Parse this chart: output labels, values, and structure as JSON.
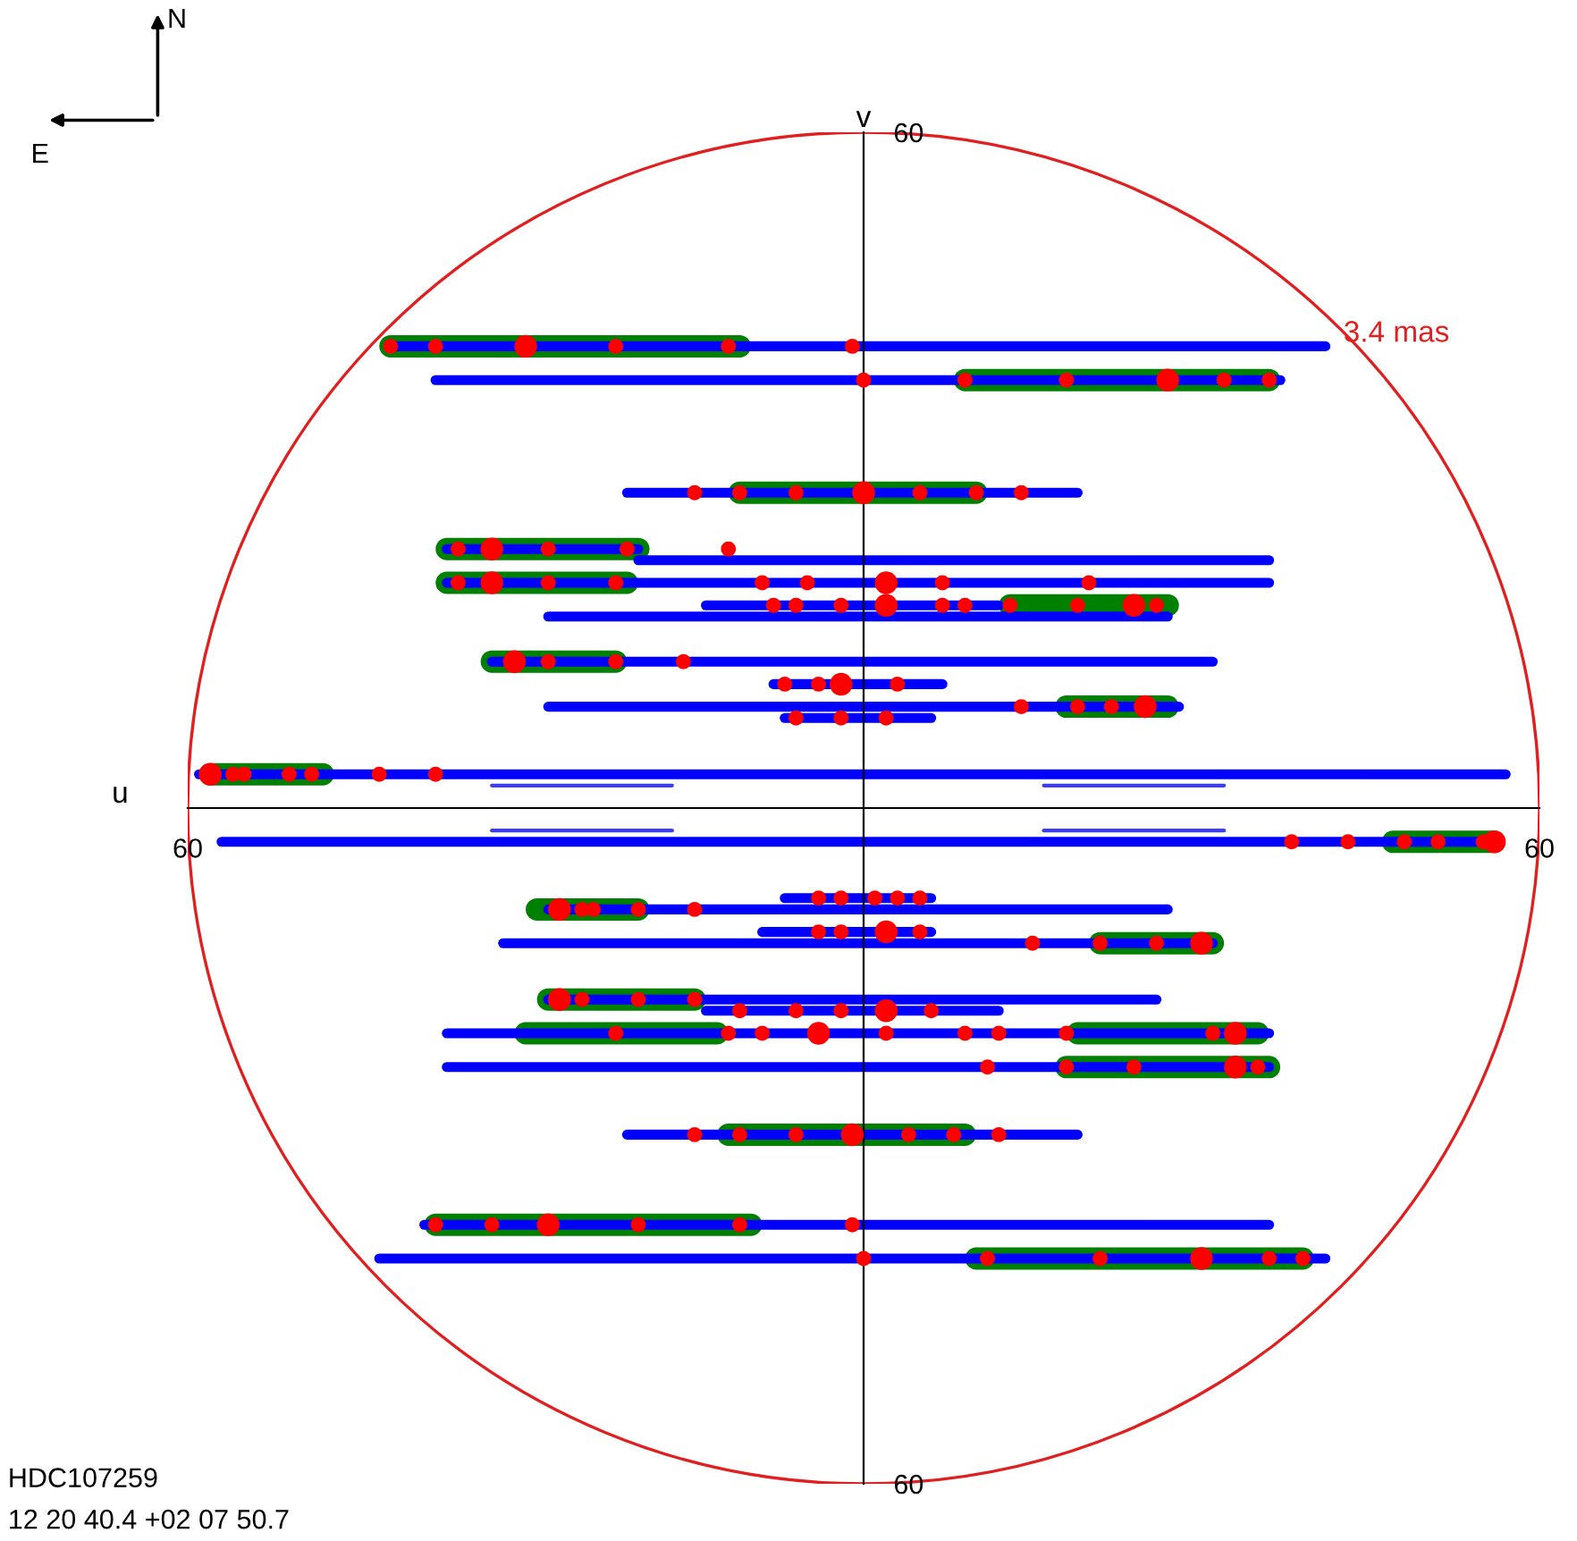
{
  "chart_data": {
    "type": "line",
    "xlabel": "u",
    "ylabel": "v",
    "xlim": [
      60,
      -60
    ],
    "ylim": [
      -60,
      60
    ],
    "xticks": [
      {
        "value": 60,
        "label": "60"
      },
      {
        "value": -60,
        "label": "60"
      }
    ],
    "yticks": [
      60,
      {
        "value": -60,
        "label": "60"
      }
    ],
    "grid": false,
    "legend": false,
    "marker": "none",
    "line_style": "solid",
    "annotations": [
      "3.4 mas",
      "HDC107259",
      "12 20 40.4 +02 07 50.7",
      "N",
      "E"
    ],
    "series": [
      {
        "color": "#008000",
        "x": [
          42,
          11
        ],
        "values": [
          41,
          41
        ]
      },
      {
        "color": "#008000",
        "x": [
          -9,
          -36
        ],
        "values": [
          38,
          38
        ]
      },
      {
        "color": "#008000",
        "x": [
          11,
          -10
        ],
        "values": [
          28,
          28
        ]
      },
      {
        "color": "#008000",
        "x": [
          37,
          20
        ],
        "values": [
          23,
          23
        ]
      },
      {
        "color": "#008000",
        "x": [
          37,
          21
        ],
        "values": [
          20,
          20
        ]
      },
      {
        "color": "#008000",
        "x": [
          -13,
          -27
        ],
        "values": [
          18,
          18
        ]
      },
      {
        "color": "#008000",
        "x": [
          33,
          22
        ],
        "values": [
          13,
          13
        ]
      },
      {
        "color": "#008000",
        "x": [
          -18,
          -27
        ],
        "values": [
          9,
          9
        ]
      },
      {
        "color": "#008000",
        "x": [
          58,
          48
        ],
        "values": [
          3,
          3
        ]
      },
      {
        "color": "#008000",
        "x": [
          -47,
          -56
        ],
        "values": [
          -3,
          -3
        ]
      },
      {
        "color": "#008000",
        "x": [
          29,
          20
        ],
        "values": [
          -9,
          -9
        ]
      },
      {
        "color": "#008000",
        "x": [
          -21,
          -31
        ],
        "values": [
          -12,
          -12
        ]
      },
      {
        "color": "#008000",
        "x": [
          28,
          15
        ],
        "values": [
          -17,
          -17
        ]
      },
      {
        "color": "#008000",
        "x": [
          30,
          13
        ],
        "values": [
          -20,
          -20
        ]
      },
      {
        "color": "#008000",
        "x": [
          -19,
          -35
        ],
        "values": [
          -20,
          -20
        ]
      },
      {
        "color": "#008000",
        "x": [
          -18,
          -36
        ],
        "values": [
          -23,
          -23
        ]
      },
      {
        "color": "#008000",
        "x": [
          12,
          -9
        ],
        "values": [
          -29,
          -29
        ]
      },
      {
        "color": "#008000",
        "x": [
          38,
          10
        ],
        "values": [
          -37,
          -37
        ]
      },
      {
        "color": "#008000",
        "x": [
          -10,
          -39
        ],
        "values": [
          -40,
          -40
        ]
      },
      {
        "color": "#0000ff",
        "x": [
          42,
          -41
        ],
        "values": [
          41,
          41
        ]
      },
      {
        "color": "#0000ff",
        "x": [
          38,
          -37
        ],
        "values": [
          38,
          38
        ]
      },
      {
        "color": "#0000ff",
        "x": [
          21,
          -19
        ],
        "values": [
          28,
          28
        ]
      },
      {
        "color": "#0000ff",
        "x": [
          37,
          20
        ],
        "values": [
          23,
          23
        ]
      },
      {
        "color": "#0000ff",
        "x": [
          20,
          -36
        ],
        "values": [
          22,
          22
        ]
      },
      {
        "color": "#0000ff",
        "x": [
          37,
          -36
        ],
        "values": [
          20,
          20
        ]
      },
      {
        "color": "#0000ff",
        "x": [
          14,
          -12
        ],
        "values": [
          18,
          18
        ]
      },
      {
        "color": "#0000ff",
        "x": [
          28,
          -27
        ],
        "values": [
          17,
          17
        ]
      },
      {
        "color": "#0000ff",
        "x": [
          33,
          -31
        ],
        "values": [
          13,
          13
        ]
      },
      {
        "color": "#0000ff",
        "x": [
          8,
          -7
        ],
        "values": [
          11,
          11
        ]
      },
      {
        "color": "#0000ff",
        "x": [
          28,
          -28
        ],
        "values": [
          9,
          9
        ]
      },
      {
        "color": "#0000ff",
        "x": [
          7,
          -6
        ],
        "values": [
          8,
          8
        ]
      },
      {
        "color": "#0000ff",
        "x": [
          59,
          -57
        ],
        "values": [
          3,
          3
        ]
      },
      {
        "color": "#0000ff",
        "x": [
          57,
          -56
        ],
        "values": [
          -3,
          -3
        ]
      },
      {
        "color": "#0000ff",
        "x": [
          7,
          -6
        ],
        "values": [
          -8,
          -8
        ]
      },
      {
        "color": "#0000ff",
        "x": [
          28,
          -27
        ],
        "values": [
          -9,
          -9
        ]
      },
      {
        "color": "#0000ff",
        "x": [
          9,
          -6
        ],
        "values": [
          -11,
          -11
        ]
      },
      {
        "color": "#0000ff",
        "x": [
          32,
          -31
        ],
        "values": [
          -12,
          -12
        ]
      },
      {
        "color": "#0000ff",
        "x": [
          28,
          -26
        ],
        "values": [
          -17,
          -17
        ]
      },
      {
        "color": "#0000ff",
        "x": [
          14,
          -12
        ],
        "values": [
          -18,
          -18
        ]
      },
      {
        "color": "#0000ff",
        "x": [
          37,
          -36
        ],
        "values": [
          -20,
          -20
        ]
      },
      {
        "color": "#0000ff",
        "x": [
          37,
          -36
        ],
        "values": [
          -23,
          -23
        ]
      },
      {
        "color": "#0000ff",
        "x": [
          21,
          -19
        ],
        "values": [
          -29,
          -29
        ]
      },
      {
        "color": "#0000ff",
        "x": [
          39,
          -36
        ],
        "values": [
          -37,
          -37
        ]
      },
      {
        "color": "#0000ff",
        "x": [
          43,
          -41
        ],
        "values": [
          -40,
          -40
        ]
      },
      {
        "color": "#3c3cff",
        "x": [
          33,
          17
        ],
        "values": [
          2,
          2
        ]
      },
      {
        "color": "#3c3cff",
        "x": [
          -16,
          -32
        ],
        "values": [
          2,
          2
        ]
      },
      {
        "color": "#3c3cff",
        "x": [
          33,
          17
        ],
        "values": [
          -2,
          -2
        ]
      },
      {
        "color": "#3c3cff",
        "x": [
          -16,
          -32
        ],
        "values": [
          -2,
          -2
        ]
      },
      {
        "type": "scatter",
        "color": "#ff0000",
        "marker": "circle",
        "x": [
          42,
          38,
          30,
          22,
          12,
          1,
          0,
          -9,
          -18,
          -27,
          -32,
          -36,
          15,
          11,
          6,
          0,
          -5,
          -10,
          -14,
          36,
          33,
          28,
          21,
          12,
          36,
          33,
          28,
          22,
          9,
          5,
          -2,
          -7,
          -20,
          8,
          6,
          2,
          -2,
          -7,
          -9,
          -13,
          -19,
          -24,
          -26,
          31,
          28,
          22,
          16,
          7,
          4,
          2,
          -3,
          -14,
          -19,
          -22,
          -25,
          6,
          2,
          -2,
          58,
          56,
          55,
          51,
          49,
          43,
          38,
          -38,
          -43,
          -48,
          -51,
          -55,
          -56,
          4,
          2,
          -1,
          -3,
          -5,
          27,
          25,
          24,
          20,
          15,
          4,
          2,
          -2,
          -5,
          -15,
          -21,
          -26,
          -30,
          27,
          25,
          20,
          15,
          11,
          6,
          2,
          -2,
          -6,
          22,
          12,
          9,
          4,
          -2,
          -9,
          -12,
          -18,
          -31,
          -33,
          -11,
          -18,
          -24,
          -33,
          -35,
          15,
          11,
          6,
          1,
          -4,
          -8,
          -12,
          38,
          33,
          28,
          20,
          11,
          1,
          0,
          -11,
          -21,
          -30,
          -36,
          -39
        ],
        "values": [
          41,
          41,
          41,
          41,
          41,
          41,
          38,
          38,
          38,
          38,
          38,
          38,
          28,
          28,
          28,
          28,
          28,
          28,
          28,
          23,
          23,
          23,
          23,
          23,
          20,
          20,
          20,
          20,
          20,
          20,
          20,
          20,
          20,
          18,
          18,
          18,
          18,
          18,
          18,
          18,
          18,
          18,
          18,
          13,
          13,
          13,
          13,
          11,
          11,
          11,
          11,
          9,
          9,
          9,
          9,
          8,
          8,
          8,
          3,
          3,
          3,
          3,
          3,
          3,
          3,
          -3,
          -3,
          -3,
          -3,
          -3,
          -3,
          -8,
          -8,
          -8,
          -8,
          -8,
          -9,
          -9,
          -9,
          -9,
          -9,
          -11,
          -11,
          -11,
          -11,
          -12,
          -12,
          -12,
          -12,
          -17,
          -17,
          -17,
          -17,
          -18,
          -18,
          -18,
          -18,
          -18,
          -20,
          -20,
          -20,
          -20,
          -20,
          -20,
          -20,
          -20,
          -20,
          -20,
          -23,
          -23,
          -23,
          -23,
          -23,
          -29,
          -29,
          -29,
          -29,
          -29,
          -29,
          -29,
          -37,
          -37,
          -37,
          -37,
          -37,
          -37,
          -40,
          -40,
          -40,
          -40,
          -40,
          -40
        ],
        "sizes": [
          0.4,
          0.4,
          1,
          0.4,
          0.4,
          0.4,
          0.4,
          0.4,
          0.4,
          1,
          0.4,
          0.4,
          0.4,
          0.4,
          0.4,
          1,
          0.4,
          0.4,
          0.4,
          0.4,
          1,
          0.4,
          0.4,
          0.4,
          0.4,
          1,
          0.4,
          0.4,
          0.4,
          0.4,
          1,
          0.4,
          0.4,
          0.4,
          0.4,
          0.4,
          1,
          0.4,
          0.4,
          0.4,
          0.4,
          1,
          0.4,
          1,
          0.4,
          0.4,
          0.4,
          0.4,
          0.4,
          1,
          0.4,
          0.4,
          0.4,
          0.4,
          1,
          0.4,
          0.4,
          0.4,
          1,
          0.4,
          0.4,
          0.4,
          0.4,
          0.4,
          0.4,
          0.4,
          0.4,
          0.4,
          0.4,
          0.4,
          1,
          0.4,
          0.4,
          0.4,
          0.4,
          0.4,
          1,
          0.4,
          0.4,
          0.4,
          0.4,
          0.4,
          0.4,
          1,
          0.4,
          0.4,
          0.4,
          0.4,
          1,
          1,
          0.4,
          0.4,
          0.4,
          0.4,
          0.4,
          0.4,
          1,
          0.4,
          0.4,
          0.4,
          0.4,
          1,
          0.4,
          0.4,
          0.4,
          0.4,
          0.4,
          1,
          0.4,
          0.4,
          0.4,
          1,
          0.4,
          0.4,
          0.4,
          0.4,
          1,
          0.4,
          0.4,
          0.4,
          0.4,
          0.4,
          1,
          0.4,
          0.4,
          0.4,
          0.4,
          0.4,
          0.4,
          1,
          0.4,
          0.4
        ]
      }
    ]
  }
}
